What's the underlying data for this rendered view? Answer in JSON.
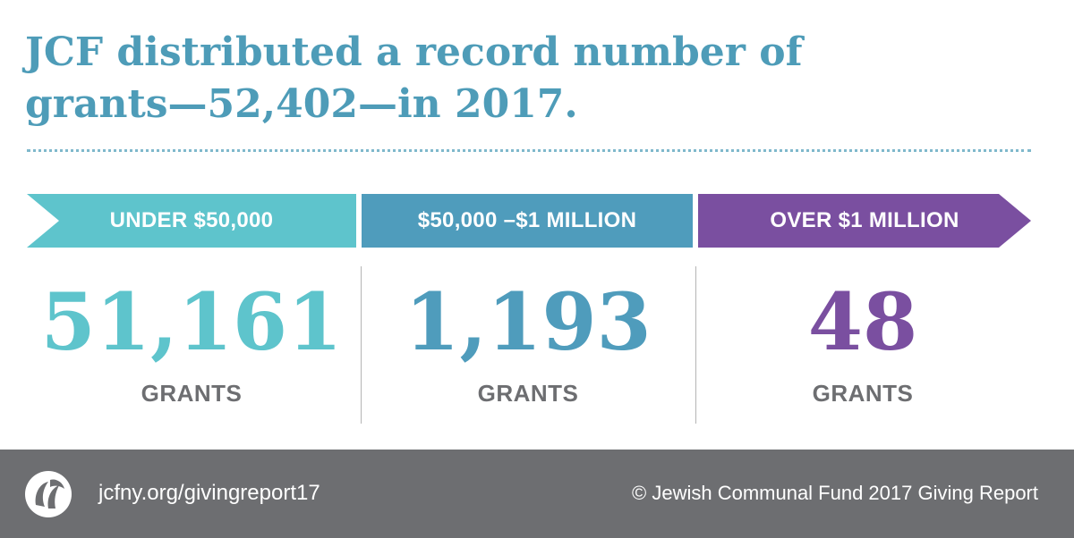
{
  "headline": {
    "line1": "JCF distributed a record number of",
    "line2": "grants—52,402—in 2017."
  },
  "categories": [
    {
      "label": "UNDER $50,000",
      "value": "51,161",
      "unit": "GRANTS",
      "color": "#5ec4cc"
    },
    {
      "label": "$50,000 –$1 MILLION",
      "value": "1,193",
      "unit": "GRANTS",
      "color": "#4f9cbc"
    },
    {
      "label": "OVER $1 MILLION",
      "value": "48",
      "unit": "GRANTS",
      "color": "#7a4fa0"
    }
  ],
  "footer": {
    "url": "jcfny.org/givingreport17",
    "credit": "© Jewish Communal Fund 2017 Giving Report",
    "logo_icon": "jcf-logo-icon"
  },
  "colors": {
    "headline": "#4e9cb8",
    "unit_text": "#6d6e71",
    "footer_bg": "#6d6e71"
  }
}
